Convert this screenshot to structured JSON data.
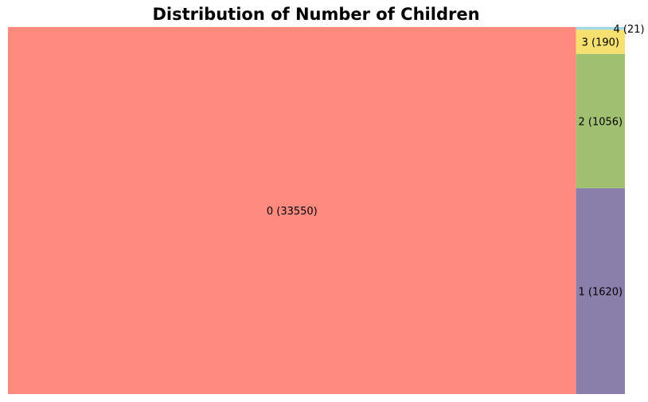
{
  "chart_data": {
    "type": "treemap",
    "title": "Distribution of Number of Children",
    "items": [
      {
        "label": "0",
        "value": 33550,
        "display": "0 (33550)",
        "color": "#ff8a7e"
      },
      {
        "label": "1",
        "value": 1620,
        "display": "1 (1620)",
        "color": "#8a7fab"
      },
      {
        "label": "2",
        "value": 1056,
        "display": "2 (1056)",
        "color": "#a0c070"
      },
      {
        "label": "3",
        "value": 190,
        "display": "3 (190)",
        "color": "#f5e070"
      },
      {
        "label": "4",
        "value": 21,
        "display": "4 (21)",
        "color": "#a0d8e8"
      }
    ]
  }
}
